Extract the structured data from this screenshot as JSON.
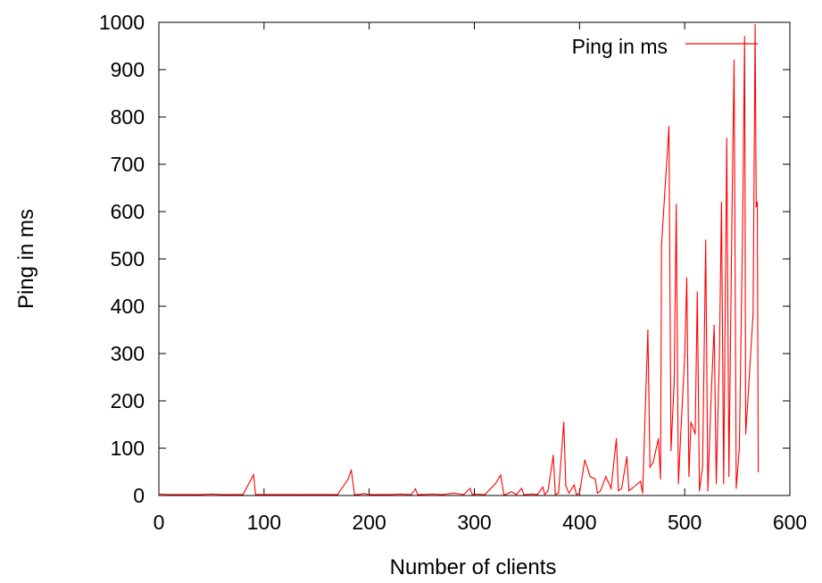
{
  "chart_data": {
    "type": "line",
    "xlabel": "Number of clients",
    "ylabel": "Ping in ms",
    "xlim": [
      0,
      600
    ],
    "ylim": [
      0,
      1000
    ],
    "x_ticks": [
      0,
      100,
      200,
      300,
      400,
      500,
      600
    ],
    "y_ticks": [
      0,
      100,
      200,
      300,
      400,
      500,
      600,
      700,
      800,
      900,
      1000
    ],
    "grid": false,
    "legend_position": "top-right",
    "series": [
      {
        "name": "Ping in ms",
        "color": "#ff0000",
        "points": [
          [
            0,
            3
          ],
          [
            10,
            2
          ],
          [
            20,
            2
          ],
          [
            30,
            2
          ],
          [
            40,
            2
          ],
          [
            50,
            3
          ],
          [
            60,
            2
          ],
          [
            70,
            2
          ],
          [
            80,
            2
          ],
          [
            90,
            44
          ],
          [
            92,
            2
          ],
          [
            100,
            2
          ],
          [
            110,
            2
          ],
          [
            120,
            2
          ],
          [
            130,
            2
          ],
          [
            140,
            2
          ],
          [
            150,
            2
          ],
          [
            160,
            2
          ],
          [
            170,
            2
          ],
          [
            180,
            35
          ],
          [
            183,
            54
          ],
          [
            186,
            2
          ],
          [
            190,
            2
          ],
          [
            195,
            4
          ],
          [
            200,
            2
          ],
          [
            210,
            2
          ],
          [
            220,
            2
          ],
          [
            230,
            3
          ],
          [
            240,
            2
          ],
          [
            244,
            14
          ],
          [
            246,
            2
          ],
          [
            250,
            2
          ],
          [
            260,
            3
          ],
          [
            270,
            2
          ],
          [
            280,
            5
          ],
          [
            290,
            2
          ],
          [
            296,
            15
          ],
          [
            298,
            2
          ],
          [
            300,
            3
          ],
          [
            310,
            2
          ],
          [
            320,
            25
          ],
          [
            325,
            43
          ],
          [
            328,
            2
          ],
          [
            330,
            2
          ],
          [
            335,
            8
          ],
          [
            340,
            2
          ],
          [
            345,
            15
          ],
          [
            347,
            2
          ],
          [
            350,
            2
          ],
          [
            355,
            3
          ],
          [
            360,
            2
          ],
          [
            365,
            18
          ],
          [
            367,
            2
          ],
          [
            370,
            10
          ],
          [
            375,
            85
          ],
          [
            377,
            2
          ],
          [
            380,
            5
          ],
          [
            385,
            155
          ],
          [
            387,
            20
          ],
          [
            390,
            5
          ],
          [
            395,
            22
          ],
          [
            397,
            2
          ],
          [
            400,
            5
          ],
          [
            405,
            75
          ],
          [
            408,
            55
          ],
          [
            410,
            40
          ],
          [
            415,
            35
          ],
          [
            417,
            5
          ],
          [
            420,
            10
          ],
          [
            425,
            40
          ],
          [
            430,
            15
          ],
          [
            435,
            120
          ],
          [
            437,
            10
          ],
          [
            440,
            15
          ],
          [
            445,
            82
          ],
          [
            447,
            10
          ],
          [
            450,
            15
          ],
          [
            458,
            30
          ],
          [
            460,
            5
          ],
          [
            465,
            350
          ],
          [
            467,
            60
          ],
          [
            470,
            70
          ],
          [
            475,
            120
          ],
          [
            477,
            35
          ],
          [
            478,
            530
          ],
          [
            485,
            780
          ],
          [
            487,
            95
          ],
          [
            490,
            240
          ],
          [
            492,
            615
          ],
          [
            494,
            25
          ],
          [
            496,
            120
          ],
          [
            500,
            295
          ],
          [
            502,
            460
          ],
          [
            504,
            40
          ],
          [
            506,
            155
          ],
          [
            510,
            130
          ],
          [
            512,
            430
          ],
          [
            514,
            10
          ],
          [
            517,
            60
          ],
          [
            520,
            540
          ],
          [
            522,
            10
          ],
          [
            525,
            200
          ],
          [
            528,
            360
          ],
          [
            530,
            25
          ],
          [
            533,
            300
          ],
          [
            535,
            620
          ],
          [
            537,
            25
          ],
          [
            540,
            755
          ],
          [
            542,
            40
          ],
          [
            545,
            600
          ],
          [
            547,
            920
          ],
          [
            549,
            15
          ],
          [
            552,
            100
          ],
          [
            555,
            555
          ],
          [
            557,
            970
          ],
          [
            558,
            130
          ],
          [
            560,
            200
          ],
          [
            565,
            385
          ],
          [
            567,
            995
          ],
          [
            568,
            610
          ],
          [
            569,
            620
          ],
          [
            570,
            50
          ]
        ]
      }
    ]
  }
}
